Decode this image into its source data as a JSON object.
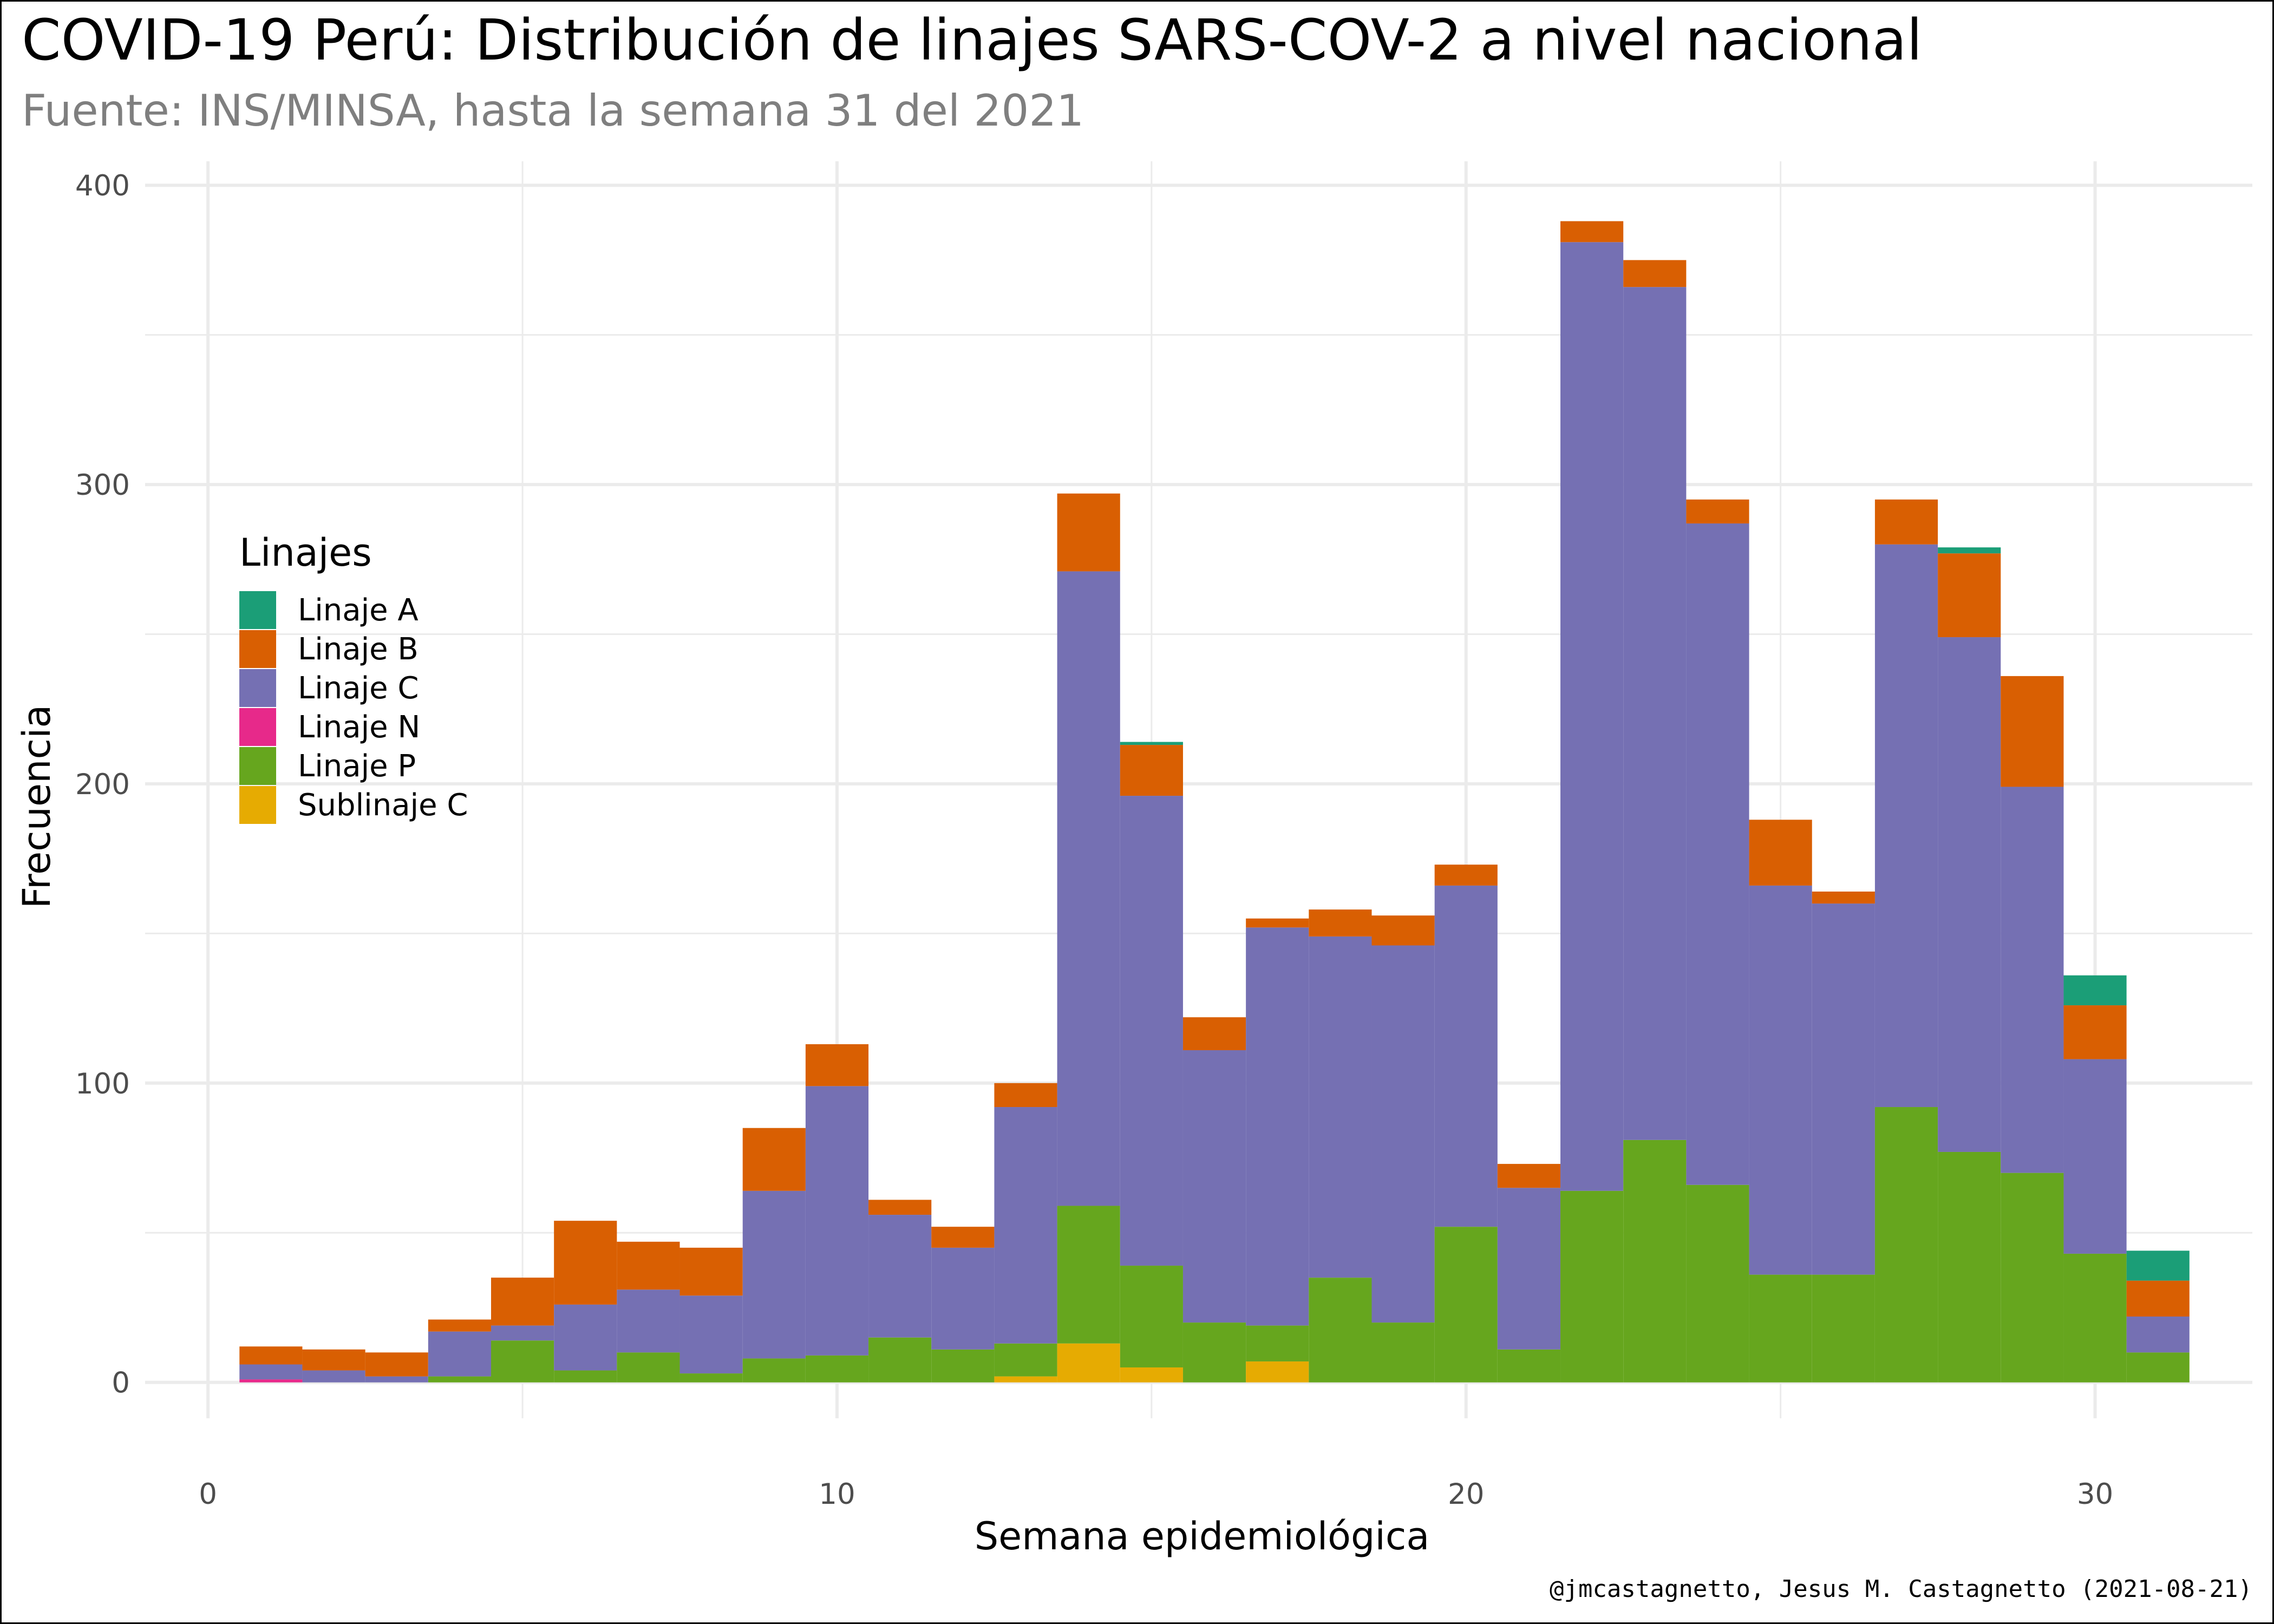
{
  "chart_data": {
    "type": "bar",
    "stacked": true,
    "title": "COVID-19 Perú: Distribución de linajes SARS-COV-2 a nivel nacional",
    "subtitle": "Fuente: INS/MINSA, hasta la semana 31 del 2021",
    "xlabel": "Semana epidemiológica",
    "ylabel": "Frecuencia",
    "caption": "@jmcastagnetto, Jesus M. Castagnetto (2021-08-21)",
    "legend_title": "Linajes",
    "legend_position": "left-inside",
    "grid": true,
    "xlim": [
      -1,
      32.5
    ],
    "ylim": [
      -12,
      408
    ],
    "x_ticks": [
      0,
      10,
      20,
      30
    ],
    "y_ticks": [
      0,
      100,
      200,
      300,
      400
    ],
    "x": [
      1,
      2,
      3,
      4,
      5,
      6,
      7,
      8,
      9,
      10,
      11,
      12,
      13,
      14,
      15,
      16,
      17,
      18,
      19,
      20,
      21,
      22,
      23,
      24,
      25,
      26,
      27,
      28,
      29,
      30,
      31
    ],
    "series": [
      {
        "name": "Sublinaje C",
        "color": "#E6AB02",
        "values": [
          0,
          0,
          0,
          0,
          0,
          0,
          0,
          0,
          0,
          0,
          0,
          0,
          2,
          13,
          5,
          0,
          7,
          0,
          0,
          0,
          0,
          0,
          0,
          0,
          0,
          0,
          0,
          0,
          0,
          0,
          0
        ]
      },
      {
        "name": "Linaje P",
        "color": "#66A61E",
        "values": [
          0,
          0,
          0,
          2,
          14,
          4,
          10,
          3,
          8,
          9,
          15,
          11,
          11,
          46,
          34,
          20,
          12,
          35,
          20,
          52,
          11,
          64,
          81,
          66,
          36,
          36,
          92,
          77,
          70,
          43,
          10
        ]
      },
      {
        "name": "Linaje N",
        "color": "#E7298A",
        "values": [
          1,
          0,
          0,
          0,
          0,
          0,
          0,
          0,
          0,
          0,
          0,
          0,
          0,
          0,
          0,
          0,
          0,
          0,
          0,
          0,
          0,
          0,
          0,
          0,
          0,
          0,
          0,
          0,
          0,
          0,
          0
        ]
      },
      {
        "name": "Linaje C",
        "color": "#7570B3",
        "values": [
          5,
          4,
          2,
          15,
          5,
          22,
          21,
          26,
          56,
          90,
          41,
          34,
          79,
          212,
          157,
          91,
          133,
          114,
          126,
          114,
          54,
          317,
          285,
          221,
          130,
          124,
          188,
          172,
          129,
          65,
          12
        ]
      },
      {
        "name": "Linaje B",
        "color": "#D95F02",
        "values": [
          6,
          7,
          8,
          4,
          16,
          28,
          16,
          16,
          21,
          14,
          5,
          7,
          8,
          26,
          17,
          11,
          3,
          9,
          10,
          7,
          8,
          7,
          9,
          8,
          22,
          4,
          15,
          28,
          37,
          18,
          12
        ]
      },
      {
        "name": "Linaje A",
        "color": "#1B9E77",
        "values": [
          0,
          0,
          0,
          0,
          0,
          0,
          0,
          0,
          0,
          0,
          0,
          0,
          0,
          0,
          1,
          0,
          0,
          0,
          0,
          0,
          0,
          0,
          0,
          0,
          0,
          0,
          0,
          2,
          0,
          10,
          10
        ]
      }
    ],
    "legend_order": [
      "Linaje A",
      "Linaje B",
      "Linaje C",
      "Linaje N",
      "Linaje P",
      "Sublinaje C"
    ]
  }
}
